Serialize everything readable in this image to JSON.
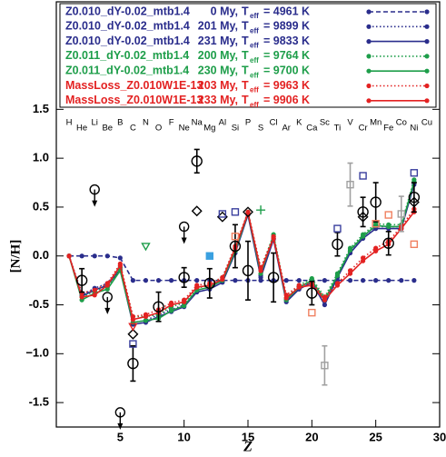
{
  "chart_data": {
    "type": "line",
    "y_label": "[N/H]",
    "x_label": "Z",
    "xlim": [
      0,
      30
    ],
    "xticks": [
      5,
      10,
      15,
      20,
      25,
      30
    ],
    "ylim": [
      -1.75,
      2.6
    ],
    "yticks": [
      -1.5,
      {
        "value": -1,
        "label": "−1.0"
      },
      -0.5,
      {
        "value": 0,
        "label": "0.0"
      },
      0.5,
      {
        "value": 1,
        "label": "1.0"
      },
      1.5
    ],
    "teff_symbol": "T",
    "teff_subscript": "eff",
    "element_labels": [
      "H",
      "He",
      "Li",
      "Be",
      "B",
      "C",
      "N",
      "O",
      "F",
      "Ne",
      "Na",
      "Mg",
      "Al",
      "Si",
      "P",
      "S",
      "Cl",
      "Ar",
      "K",
      "Ca",
      "Sc",
      "Ti",
      "V",
      "Cr",
      "Mn",
      "Fe",
      "Co",
      "Ni",
      "Cu"
    ],
    "x": [
      1,
      2,
      3,
      4,
      5,
      6,
      7,
      8,
      9,
      10,
      11,
      12,
      13,
      14,
      15,
      16,
      17,
      18,
      19,
      20,
      21,
      22,
      23,
      24,
      25,
      26,
      27,
      28
    ],
    "series": [
      {
        "name": "Z0.010_dY-0.02_mtb1.4",
        "age": "0 My,",
        "teff": "= 4961 K",
        "color": "#2a2d8c",
        "dash": "dashed",
        "values": [
          0,
          0,
          0,
          0,
          -0.02,
          -0.25,
          -0.25,
          -0.25,
          -0.25,
          -0.25,
          -0.25,
          -0.25,
          -0.25,
          -0.25,
          -0.25,
          -0.25,
          -0.25,
          -0.25,
          -0.25,
          -0.25,
          -0.25,
          -0.25,
          -0.25,
          -0.25,
          -0.25,
          -0.25,
          -0.25,
          -0.25
        ]
      },
      {
        "name": "Z0.010_dY-0.02_mtb1.4",
        "age": "201 My,",
        "teff": "= 9899 K",
        "color": "#2a2d8c",
        "dash": "dotted",
        "values": [
          0,
          -0.4,
          -0.33,
          -0.28,
          -0.12,
          -0.68,
          -0.66,
          -0.6,
          -0.55,
          -0.5,
          -0.35,
          -0.32,
          -0.25,
          0.05,
          0.43,
          -0.2,
          0.18,
          -0.45,
          -0.32,
          -0.25,
          -0.45,
          -0.2,
          0.05,
          0.2,
          0.3,
          0.3,
          0.3,
          0.75
        ]
      },
      {
        "name": "Z0.010_dY-0.02_mtb1.4",
        "age": "231 My,",
        "teff": "= 9833 K",
        "color": "#2a2d8c",
        "dash": "solid",
        "values": [
          0,
          -0.41,
          -0.35,
          -0.3,
          -0.14,
          -0.7,
          -0.68,
          -0.62,
          -0.57,
          -0.52,
          -0.37,
          -0.34,
          -0.27,
          0.03,
          0.42,
          -0.22,
          0.17,
          -0.47,
          -0.34,
          -0.27,
          -0.5,
          -0.22,
          0.03,
          0.18,
          0.28,
          0.28,
          0.28,
          0.73
        ]
      },
      {
        "name": "Z0.011_dY-0.02_mtb1.4",
        "age": "200 My,",
        "teff": "= 9764 K",
        "color": "#1e9e4a",
        "dash": "dotted",
        "values": [
          0,
          -0.42,
          -0.36,
          -0.32,
          -0.12,
          -0.62,
          -0.62,
          -0.6,
          -0.52,
          -0.48,
          -0.33,
          -0.3,
          -0.22,
          0.08,
          0.45,
          -0.15,
          0.22,
          -0.43,
          -0.3,
          -0.23,
          -0.42,
          -0.18,
          0.08,
          0.22,
          0.33,
          0.32,
          0.32,
          0.78
        ]
      },
      {
        "name": "Z0.011_dY-0.02_mtb1.4",
        "age": "230 My,",
        "teff": "= 9700 K",
        "color": "#1e9e4a",
        "dash": "solid",
        "values": [
          0,
          -0.45,
          -0.38,
          -0.34,
          -0.15,
          -0.68,
          -0.66,
          -0.64,
          -0.56,
          -0.51,
          -0.35,
          -0.32,
          -0.25,
          0.05,
          0.44,
          -0.18,
          0.2,
          -0.45,
          -0.32,
          -0.25,
          -0.45,
          -0.2,
          0.06,
          0.2,
          0.31,
          0.3,
          0.3,
          0.76
        ]
      },
      {
        "name": "MassLoss_Z0.010W1E-13",
        "age": "203 My,",
        "teff": "= 9963 K",
        "color": "#e32222",
        "dash": "dotted",
        "values": [
          0,
          -0.38,
          -0.35,
          -0.28,
          -0.08,
          -0.62,
          -0.6,
          -0.55,
          -0.48,
          -0.45,
          -0.3,
          -0.28,
          -0.22,
          0.1,
          0.45,
          -0.12,
          0.2,
          -0.4,
          -0.3,
          -0.28,
          -0.42,
          -0.28,
          -0.15,
          -0.02,
          0.08,
          0.15,
          0.3,
          0.48
        ]
      },
      {
        "name": "MassLoss_Z0.010W1E-13",
        "age": "233 My,",
        "teff": "= 9906 K",
        "color": "#e32222",
        "dash": "solid",
        "values": [
          0,
          -0.42,
          -0.4,
          -0.3,
          -0.1,
          -0.65,
          -0.62,
          -0.58,
          -0.5,
          -0.47,
          -0.32,
          -0.3,
          -0.24,
          0.08,
          0.44,
          -0.15,
          0.18,
          -0.43,
          -0.32,
          -0.3,
          -0.45,
          -0.3,
          -0.18,
          -0.05,
          0.05,
          0.12,
          0.28,
          0.45
        ]
      }
    ],
    "observations": [
      {
        "marker": "circle",
        "color": "#000000",
        "x": [
          2,
          6,
          8,
          10,
          11,
          12,
          14,
          15,
          17,
          20,
          22,
          24,
          25,
          26,
          28
        ],
        "values": [
          -0.25,
          -1.1,
          -0.52,
          -0.22,
          0.97,
          -0.28,
          0.1,
          -0.15,
          -0.22,
          -0.38,
          0.12,
          0.45,
          0.55,
          0.13,
          0.6
        ],
        "errors": [
          0.12,
          0.18,
          0.15,
          0.1,
          0.12,
          0.15,
          0.22,
          0.3,
          0.25,
          0.12,
          0.12,
          0.15,
          0.2,
          0.12,
          0.15
        ]
      },
      {
        "marker": "upper-limit",
        "color": "#000000",
        "x": [
          3,
          4,
          5,
          10
        ],
        "values": [
          0.68,
          -0.42,
          -1.6,
          0.3
        ]
      },
      {
        "marker": "diamond",
        "color": "#000000",
        "x": [
          6,
          11,
          13,
          15,
          24,
          28
        ],
        "values": [
          -0.8,
          0.46,
          0.4,
          0.45,
          0.4,
          0.55
        ]
      },
      {
        "marker": "square",
        "color": "#3a3f9e",
        "x": [
          6,
          13,
          14,
          22,
          24,
          28
        ],
        "values": [
          -0.9,
          0.43,
          0.45,
          0.28,
          0.82,
          0.85
        ]
      },
      {
        "marker": "filled-square",
        "color": "#3aa0e0",
        "x": [
          12
        ],
        "values": [
          0.0
        ]
      },
      {
        "marker": "square",
        "color": "#f08060",
        "x": [
          14,
          20,
          25,
          26,
          28
        ],
        "values": [
          0.2,
          -0.58,
          0.33,
          0.42,
          0.12
        ]
      },
      {
        "marker": "square",
        "color": "#a0a0a0",
        "x": [
          21,
          23,
          27
        ],
        "values": [
          -1.12,
          0.73,
          0.43
        ],
        "errors": [
          0.2,
          0.22,
          0.18
        ]
      },
      {
        "marker": "triangle",
        "color": "#1e9e4a",
        "x": [
          7
        ],
        "values": [
          0.1
        ]
      },
      {
        "marker": "triangle",
        "color": "#e32222",
        "x": [
          6
        ],
        "values": [
          -0.72
        ]
      },
      {
        "marker": "plus",
        "color": "#1e9e4a",
        "x": [
          16
        ],
        "values": [
          0.47
        ]
      }
    ]
  }
}
